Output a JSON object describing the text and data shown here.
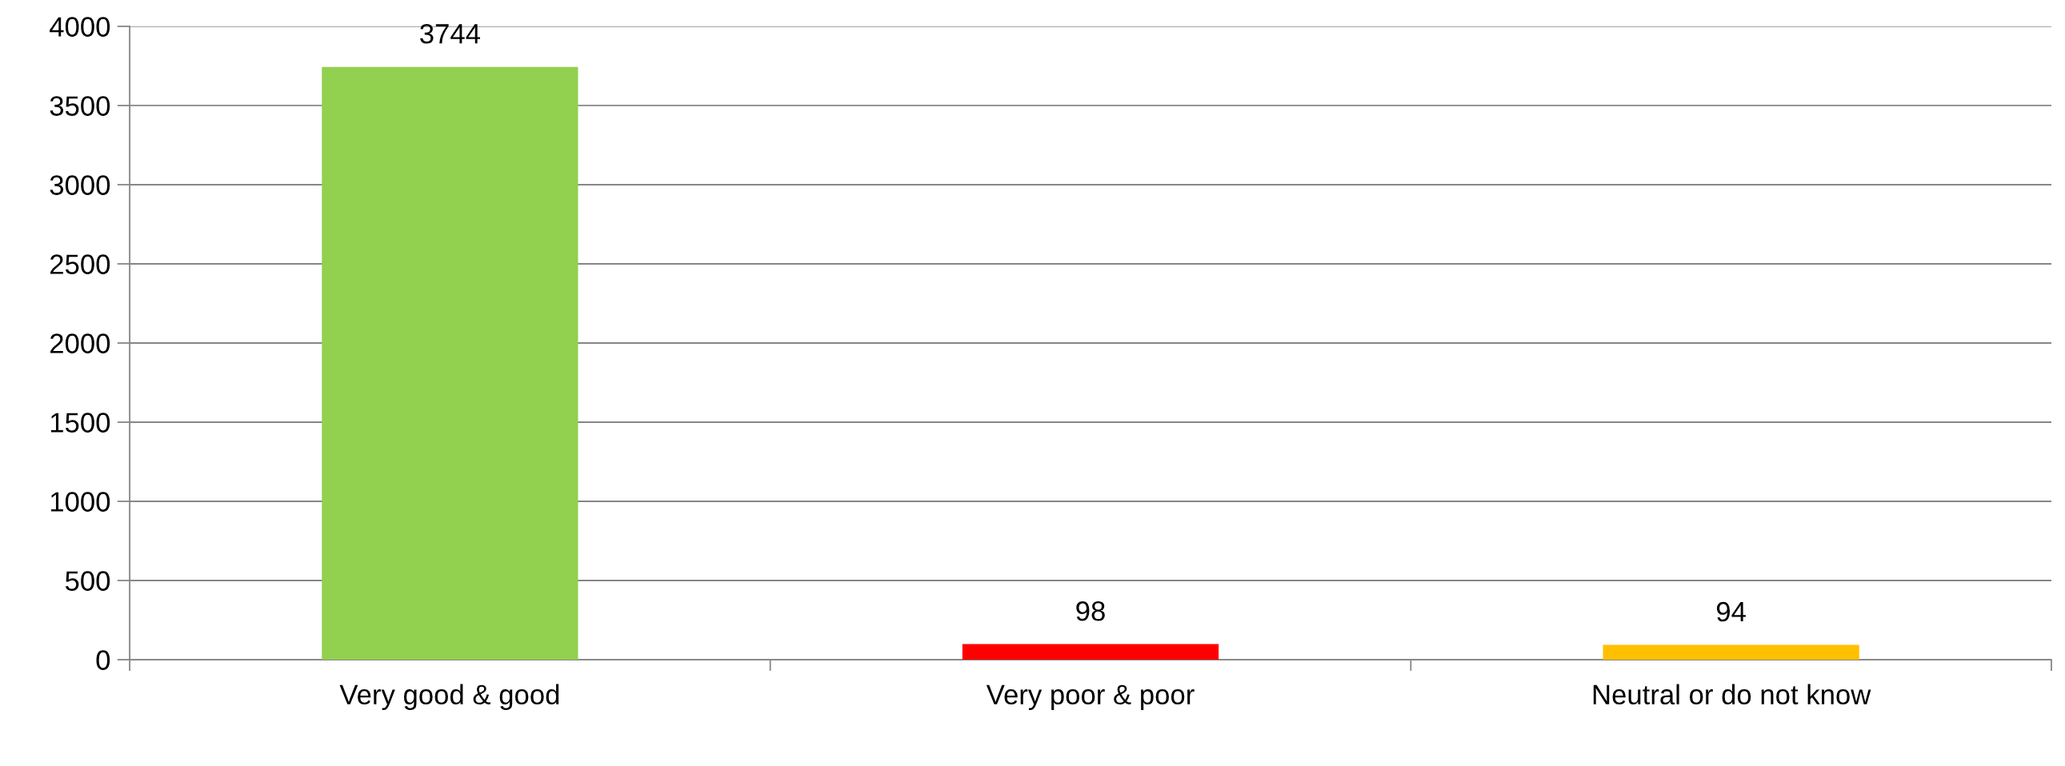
{
  "chart_data": {
    "type": "bar",
    "categories": [
      "Very good & good",
      "Very poor & poor",
      "Neutral or do not know"
    ],
    "values": [
      3744,
      98,
      94
    ],
    "colors": [
      "#92d050",
      "#ff0000",
      "#ffc000"
    ],
    "ylim": [
      0,
      4000
    ],
    "yticks": [
      0,
      500,
      1000,
      1500,
      2000,
      2500,
      3000,
      3500,
      4000
    ],
    "grid": "y",
    "data_labels": true
  }
}
